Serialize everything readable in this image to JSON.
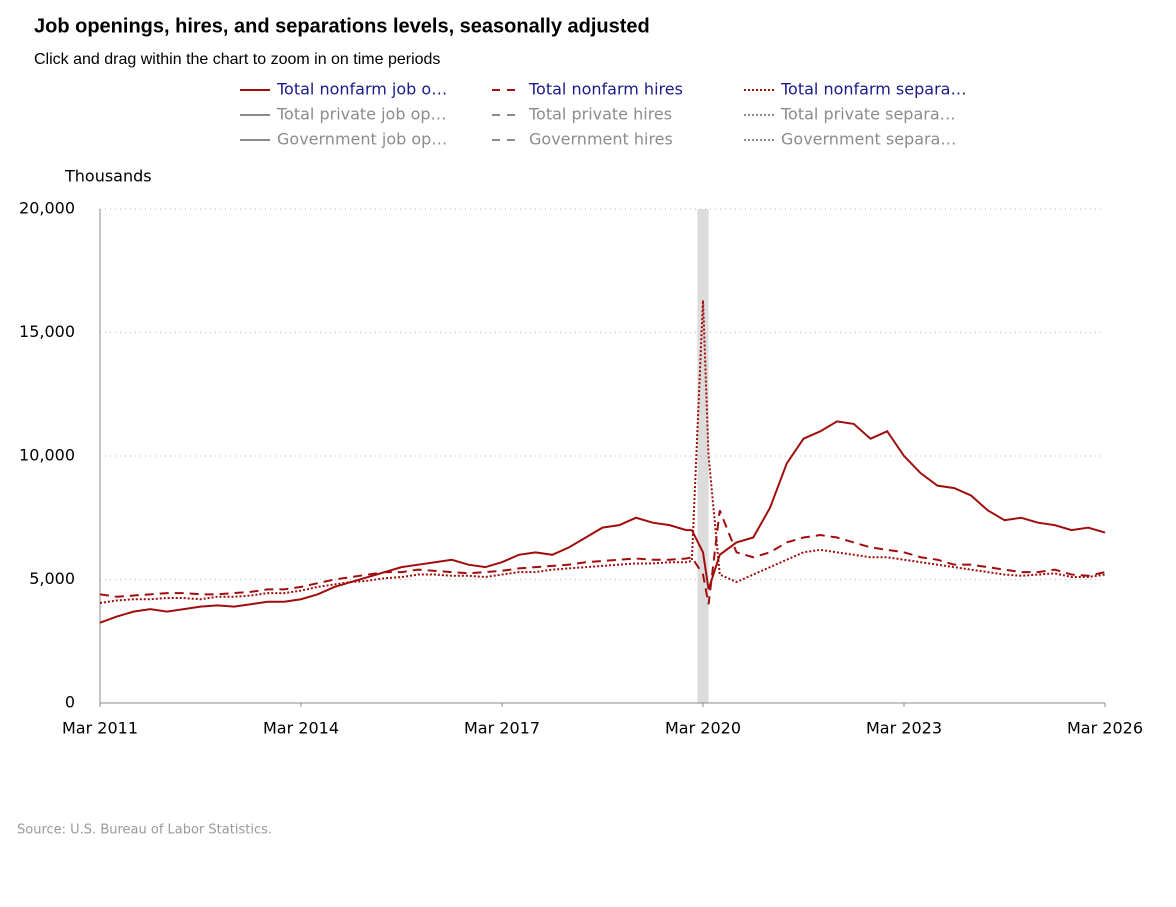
{
  "chart_data": {
    "type": "line",
    "title": "Job openings, hires, and separations levels, seasonally adjusted",
    "subtitle": "Click and drag within the chart to zoom in on time periods",
    "y_label": "Thousands",
    "source": "Source: U.S. Bureau of Labor Statistics.",
    "x": [
      "2011-03",
      "2011-06",
      "2011-09",
      "2011-12",
      "2012-03",
      "2012-06",
      "2012-09",
      "2012-12",
      "2013-03",
      "2013-06",
      "2013-09",
      "2013-12",
      "2014-03",
      "2014-06",
      "2014-09",
      "2014-12",
      "2015-03",
      "2015-06",
      "2015-09",
      "2015-12",
      "2016-03",
      "2016-06",
      "2016-09",
      "2016-12",
      "2017-03",
      "2017-06",
      "2017-09",
      "2017-12",
      "2018-03",
      "2018-06",
      "2018-09",
      "2018-12",
      "2019-03",
      "2019-06",
      "2019-09",
      "2019-12",
      "2020-01",
      "2020-03",
      "2020-04",
      "2020-06",
      "2020-09",
      "2020-12",
      "2021-03",
      "2021-06",
      "2021-09",
      "2021-12",
      "2022-03",
      "2022-06",
      "2022-09",
      "2022-12",
      "2023-03",
      "2023-06",
      "2023-09",
      "2023-12",
      "2024-03",
      "2024-06",
      "2024-09",
      "2024-12",
      "2025-03",
      "2025-06",
      "2025-09",
      "2025-12",
      "2026-03"
    ],
    "series": [
      {
        "name": "Total nonfarm job o…",
        "color": "#a00d0d",
        "dash": "solid",
        "values": [
          3250,
          3500,
          3700,
          3800,
          3700,
          3800,
          3900,
          3950,
          3900,
          4000,
          4100,
          4100,
          4200,
          4400,
          4700,
          4900,
          5100,
          5300,
          5500,
          5600,
          5700,
          5800,
          5600,
          5500,
          5700,
          6000,
          6100,
          6000,
          6300,
          6700,
          7100,
          7200,
          7500,
          7300,
          7200,
          7000,
          7000,
          6100,
          4600,
          6000,
          6500,
          6700,
          7900,
          9700,
          10700,
          11000,
          11400,
          11300,
          10700,
          11000,
          10000,
          9300,
          8800,
          8700,
          8400,
          7800,
          7400,
          7500,
          7300,
          7200,
          7000,
          7100,
          6900
        ]
      },
      {
        "name": "Total nonfarm hires",
        "color": "#a00d0d",
        "dash": "dash",
        "values": [
          4400,
          4300,
          4350,
          4400,
          4450,
          4450,
          4400,
          4400,
          4450,
          4500,
          4600,
          4600,
          4700,
          4850,
          5000,
          5100,
          5200,
          5300,
          5300,
          5400,
          5350,
          5300,
          5250,
          5300,
          5350,
          5450,
          5500,
          5550,
          5600,
          5700,
          5750,
          5800,
          5850,
          5800,
          5800,
          5850,
          5900,
          5200,
          4000,
          7800,
          6100,
          5900,
          6100,
          6500,
          6700,
          6800,
          6700,
          6500,
          6300,
          6200,
          6100,
          5900,
          5800,
          5600,
          5600,
          5500,
          5400,
          5300,
          5300,
          5400,
          5200,
          5150,
          5300
        ]
      },
      {
        "name": "Total nonfarm separa…",
        "color": "#a00d0d",
        "dash": "dot",
        "values": [
          4050,
          4150,
          4200,
          4200,
          4250,
          4250,
          4200,
          4300,
          4300,
          4350,
          4450,
          4450,
          4550,
          4700,
          4800,
          4900,
          4950,
          5050,
          5100,
          5200,
          5200,
          5150,
          5150,
          5100,
          5200,
          5300,
          5300,
          5400,
          5450,
          5500,
          5550,
          5600,
          5650,
          5650,
          5700,
          5700,
          5750,
          16300,
          10000,
          5200,
          4900,
          5200,
          5500,
          5800,
          6100,
          6200,
          6100,
          6000,
          5900,
          5900,
          5800,
          5700,
          5600,
          5500,
          5400,
          5300,
          5200,
          5150,
          5200,
          5250,
          5100,
          5100,
          5200
        ]
      }
    ],
    "inactive_series": [
      {
        "name": "Total private job op…",
        "color": "#8c8c8c",
        "dash": "solid"
      },
      {
        "name": "Total private hires",
        "color": "#8c8c8c",
        "dash": "dash"
      },
      {
        "name": "Total private separa…",
        "color": "#8c8c8c",
        "dash": "dot"
      },
      {
        "name": "Government job op…",
        "color": "#8c8c8c",
        "dash": "solid"
      },
      {
        "name": "Government hires",
        "color": "#8c8c8c",
        "dash": "dash"
      },
      {
        "name": "Government separa…",
        "color": "#8c8c8c",
        "dash": "dot"
      }
    ],
    "shaded_periods": [
      {
        "start": "2020-02",
        "end": "2020-04",
        "color": "#dcdcdc"
      }
    ],
    "xlim": [
      "2011-03",
      "2026-03"
    ],
    "xticks": [
      {
        "value": "2011-03",
        "label": "Mar 2011"
      },
      {
        "value": "2014-03",
        "label": "Mar 2014"
      },
      {
        "value": "2017-03",
        "label": "Mar 2017"
      },
      {
        "value": "2020-03",
        "label": "Mar 2020"
      },
      {
        "value": "2023-03",
        "label": "Mar 2023"
      },
      {
        "value": "2026-03",
        "label": "Mar 2026"
      }
    ],
    "ylim": [
      0,
      20000
    ],
    "yticks": [
      0,
      {
        "value": 5000,
        "label": "5,000"
      },
      {
        "value": 10000,
        "label": "10,000"
      },
      {
        "value": 15000,
        "label": "15,000"
      },
      {
        "value": 20000,
        "label": "20,000"
      }
    ],
    "grid": true
  }
}
